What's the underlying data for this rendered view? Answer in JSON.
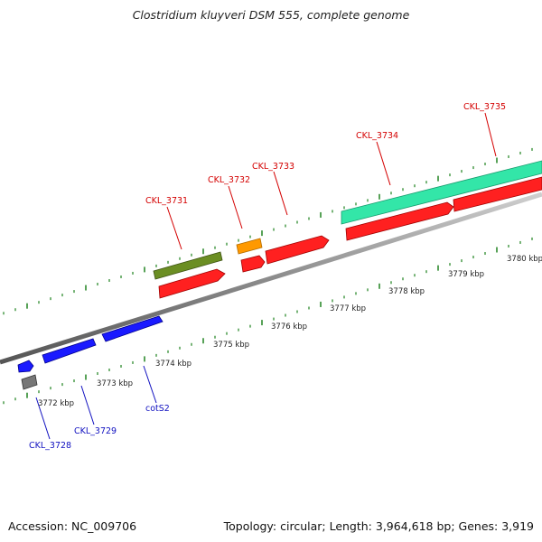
{
  "title": "Clostridium kluyveri DSM 555, complete genome",
  "accession": "Accession: NC_009706",
  "topology": "Topology: circular; Length: 3,964,618 bp; Genes: 3,919",
  "colors": {
    "background": "#ffffff",
    "backbone": "#8c8c8c",
    "tick": "#2e8b2e",
    "label_top": "#d40000",
    "label_bottom": "#1010c0",
    "cds_red": "#ff2020",
    "cds_green": "#6b8e23",
    "cds_orange": "#ff9900",
    "cds_blue": "#1a1aff",
    "cds_gray": "#777777",
    "rna_teal": "#33e6a8"
  },
  "scale_labels": [
    "3772 kbp",
    "3773 kbp",
    "3774 kbp",
    "3775 kbp",
    "3776 kbp",
    "3777 kbp",
    "3778 kbp",
    "3779 kbp",
    "3780 kbp"
  ],
  "top_labels": [
    "CKL_3731",
    "CKL_3732",
    "CKL_3733",
    "CKL_3734",
    "CKL_3735"
  ],
  "bottom_labels": [
    "CKL_3728",
    "CKL_3729",
    "cotS2"
  ]
}
